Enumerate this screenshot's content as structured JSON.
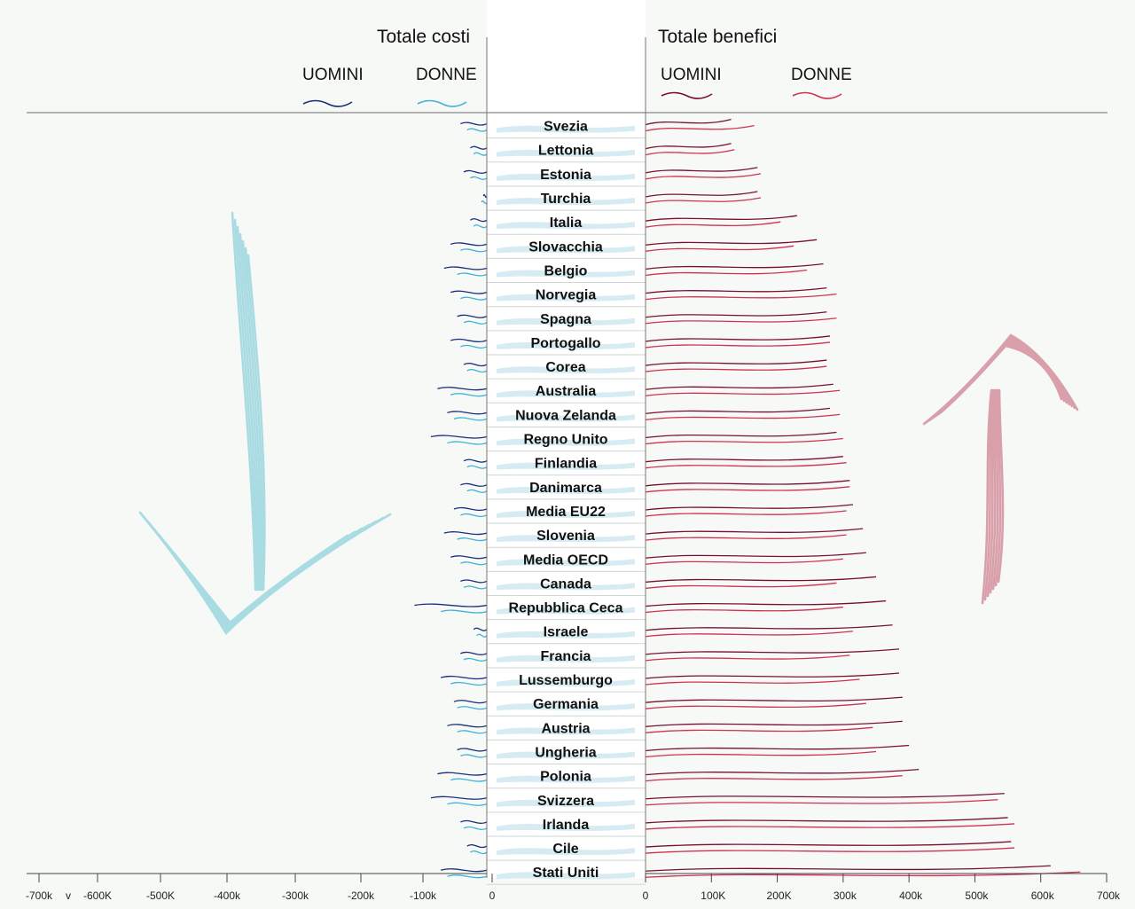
{
  "headers": {
    "left_title": "Totale costi",
    "right_title": "Totale benefici",
    "men_label": "UOMINI",
    "women_label": "DONNE"
  },
  "colors": {
    "cost_men": "#1b2f7a",
    "cost_women": "#3fb3d6",
    "benefit_men": "#7a1030",
    "benefit_women": "#d0334f",
    "down_arrow": "#a9dbe3",
    "up_arrow": "#d9a0ab",
    "name_brush": "#d6ecf2"
  },
  "icons": {
    "left_arrow": "down-arrow-icon",
    "right_arrow": "up-arrow-icon"
  },
  "chart_data": {
    "type": "bar",
    "orientation": "horizontal-diverging",
    "categories": [
      "Svezia",
      "Lettonia",
      "Estonia",
      "Turchia",
      "Italia",
      "Slovacchia",
      "Belgio",
      "Norvegia",
      "Spagna",
      "Portogallo",
      "Corea",
      "Australia",
      "Nuova Zelanda",
      "Regno Unito",
      "Finlandia",
      "Danimarca",
      "Media EU22",
      "Slovenia",
      "Media OECD",
      "Canada",
      "Repubblica Ceca",
      "Israele",
      "Francia",
      "Lussemburgo",
      "Germania",
      "Austria",
      "Ungheria",
      "Polonia",
      "Svizzera",
      "Irlanda",
      "Cile",
      "Stati Uniti"
    ],
    "series": [
      {
        "name": "UOMINI",
        "group": "Totale costi",
        "values": [
          -40000,
          -25000,
          -35000,
          -5000,
          -25000,
          -55000,
          -65000,
          -55000,
          -45000,
          -55000,
          -35000,
          -75000,
          -60000,
          -85000,
          -35000,
          -40000,
          -50000,
          -65000,
          -55000,
          -40000,
          -110000,
          -20000,
          -40000,
          -70000,
          -50000,
          -60000,
          -45000,
          -75000,
          -85000,
          -40000,
          -30000,
          -70000
        ]
      },
      {
        "name": "DONNE",
        "group": "Totale costi",
        "values": [
          -30000,
          -20000,
          -25000,
          -8000,
          -20000,
          -40000,
          -45000,
          -40000,
          -35000,
          -40000,
          -30000,
          -55000,
          -50000,
          -60000,
          -30000,
          -30000,
          -40000,
          -45000,
          -40000,
          -35000,
          -70000,
          -15000,
          -35000,
          -55000,
          -45000,
          -45000,
          -40000,
          -55000,
          -60000,
          -35000,
          -25000,
          -60000
        ]
      },
      {
        "name": "UOMINI",
        "group": "Totale benefici",
        "values": [
          130000,
          130000,
          170000,
          170000,
          230000,
          260000,
          270000,
          275000,
          275000,
          280000,
          275000,
          285000,
          280000,
          290000,
          300000,
          310000,
          315000,
          330000,
          335000,
          350000,
          365000,
          375000,
          385000,
          385000,
          390000,
          390000,
          400000,
          415000,
          545000,
          550000,
          555000,
          615000
        ]
      },
      {
        "name": "DONNE",
        "group": "Totale benefici",
        "values": [
          165000,
          135000,
          175000,
          175000,
          205000,
          225000,
          245000,
          290000,
          290000,
          280000,
          275000,
          295000,
          295000,
          300000,
          305000,
          310000,
          305000,
          305000,
          300000,
          290000,
          300000,
          315000,
          310000,
          325000,
          335000,
          345000,
          350000,
          390000,
          535000,
          560000,
          560000,
          660000
        ]
      }
    ],
    "cost_axis": {
      "ticks": [
        "-700k",
        "v",
        "-600K",
        "-500K",
        "-400k",
        "-300k",
        "-200k",
        "-100k",
        "0"
      ],
      "range": [
        -700000,
        0
      ]
    },
    "benefit_axis": {
      "ticks": [
        "0",
        "100K",
        "200K",
        "300k",
        "400k",
        "500k",
        "600k",
        "700k"
      ],
      "range": [
        0,
        700000
      ]
    }
  }
}
